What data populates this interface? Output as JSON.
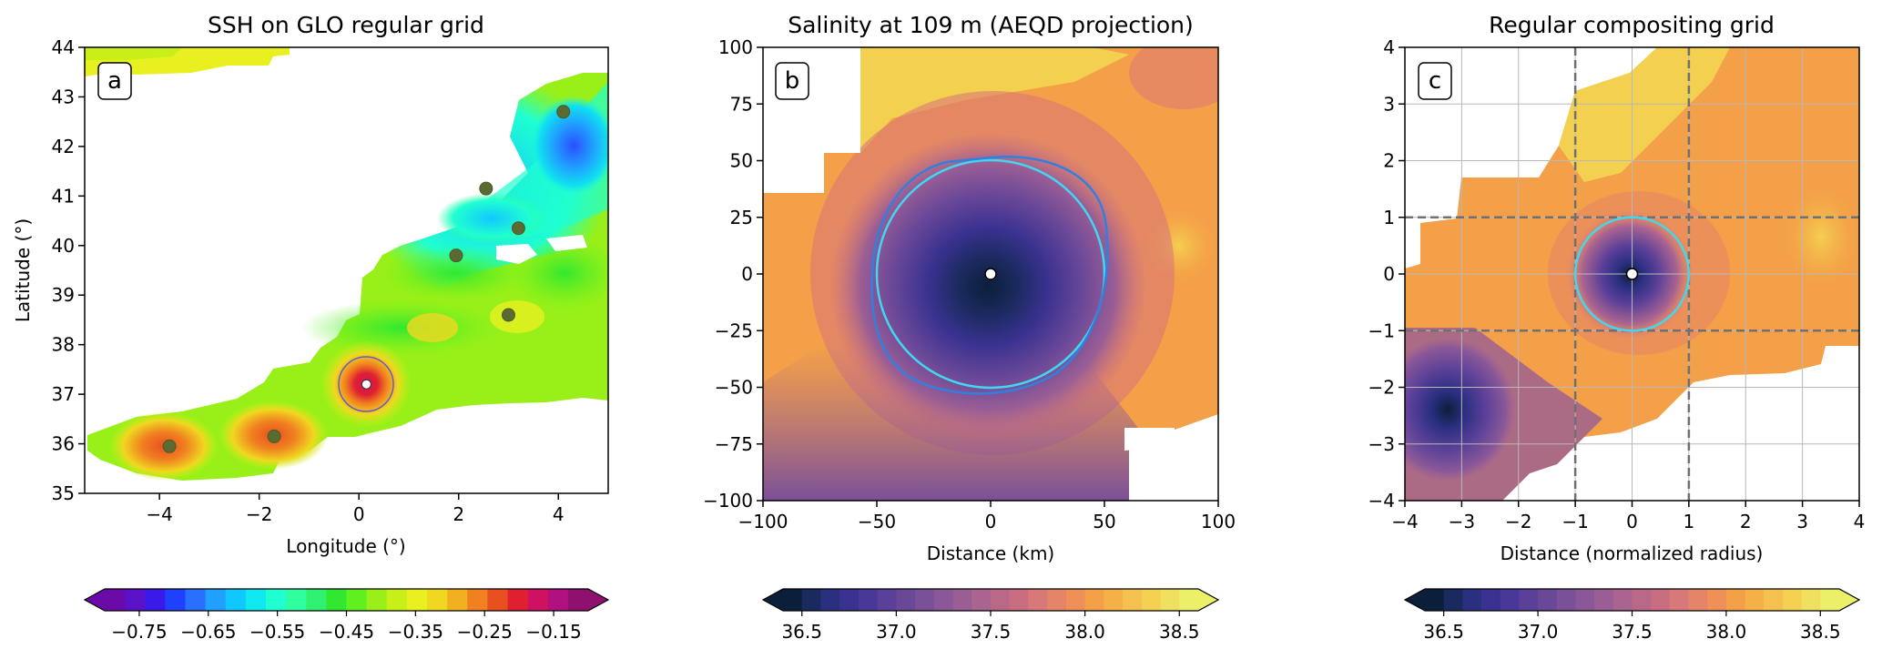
{
  "chart_data": [
    {
      "type": "heatmap",
      "panel_letter": "a",
      "title": "SSH on GLO regular grid",
      "xlabel": "Longitude (°)",
      "ylabel": "Latitude (°)",
      "xlim": [
        -5.5,
        5
      ],
      "ylim": [
        35,
        44
      ],
      "xticks": [
        -4,
        -2,
        0,
        2,
        4
      ],
      "yticks": [
        35,
        36,
        37,
        38,
        39,
        40,
        41,
        42,
        43,
        44
      ],
      "colorbar": {
        "ticks": [
          -0.75,
          -0.65,
          -0.55,
          -0.45,
          -0.35,
          -0.25,
          -0.15
        ],
        "range": [
          -0.8,
          -0.1
        ],
        "colors": [
          "#6a0aa8",
          "#5a12c8",
          "#3a1ae8",
          "#2040ff",
          "#2a70ff",
          "#20a0ff",
          "#10c8ff",
          "#10e8f0",
          "#20ffd0",
          "#30ffa0",
          "#30f070",
          "#30e830",
          "#60f020",
          "#98f018",
          "#c8f018",
          "#e8f020",
          "#f0d820",
          "#f0b020",
          "#f08020",
          "#e85020",
          "#e02030",
          "#d01060",
          "#b01080",
          "#901070"
        ],
        "extend": "both"
      },
      "points": [
        {
          "x": -3.8,
          "y": 35.95
        },
        {
          "x": -1.7,
          "y": 36.15
        },
        {
          "x": 4.1,
          "y": 42.7
        },
        {
          "x": 2.55,
          "y": 41.15
        },
        {
          "x": 3.2,
          "y": 40.35
        },
        {
          "x": 1.95,
          "y": 39.8
        },
        {
          "x": 3.0,
          "y": 38.6
        }
      ],
      "center_point": {
        "x": 0.15,
        "y": 37.2
      }
    },
    {
      "type": "heatmap",
      "panel_letter": "b",
      "title": "Salinity at 109 m (AEQD projection)",
      "xlabel": "Distance (km)",
      "ylabel": "",
      "xlim": [
        -100,
        100
      ],
      "ylim": [
        -100,
        100
      ],
      "xticks": [
        -100,
        -50,
        0,
        50,
        100
      ],
      "yticks": [
        -100,
        -75,
        -50,
        -25,
        0,
        25,
        50,
        75,
        100
      ],
      "colorbar": {
        "ticks": [
          36.5,
          37.0,
          37.5,
          38.0,
          38.5
        ],
        "range": [
          36.4,
          38.6
        ],
        "colors": [
          "#0b1f3a",
          "#1a2a5e",
          "#2a2f80",
          "#3a3290",
          "#4a3898",
          "#5a4098",
          "#6a4898",
          "#7a5098",
          "#8a5898",
          "#9a5e95",
          "#aa6490",
          "#ba6888",
          "#c86e80",
          "#d87878",
          "#e48468",
          "#ee9058",
          "#f4a048",
          "#f6b048",
          "#f6c050",
          "#f4d050",
          "#f0e060",
          "#ecf068"
        ],
        "extend": "both"
      },
      "circle_radius": 50,
      "center_point": {
        "x": 0,
        "y": 0
      }
    },
    {
      "type": "heatmap",
      "panel_letter": "c",
      "title": "Regular compositing grid",
      "xlabel": "Distance (normalized radius)",
      "ylabel": "",
      "xlim": [
        -4,
        4
      ],
      "ylim": [
        -4,
        4
      ],
      "xticks": [
        -4,
        -3,
        -2,
        -1,
        0,
        1,
        2,
        3,
        4
      ],
      "yticks": [
        -4,
        -3,
        -2,
        -1,
        0,
        1,
        2,
        3,
        4
      ],
      "dashed_lines": [
        -1,
        1
      ],
      "circle_radius": 1,
      "colorbar": {
        "ticks": [
          36.5,
          37.0,
          37.5,
          38.0,
          38.5
        ],
        "range": [
          36.4,
          38.6
        ],
        "colors": [
          "#0b1f3a",
          "#1a2a5e",
          "#2a2f80",
          "#3a3290",
          "#4a3898",
          "#5a4098",
          "#6a4898",
          "#7a5098",
          "#8a5898",
          "#9a5e95",
          "#aa6490",
          "#ba6888",
          "#c86e80",
          "#d87878",
          "#e48468",
          "#ee9058",
          "#f4a048",
          "#f6b048",
          "#f6c050",
          "#f4d050",
          "#f0e060",
          "#ecf068"
        ],
        "extend": "both"
      },
      "center_point": {
        "x": 0,
        "y": 0
      }
    }
  ]
}
